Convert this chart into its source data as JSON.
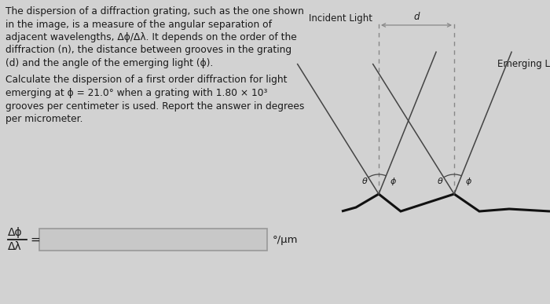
{
  "bg_color": "#d2d2d2",
  "text_color": "#1a1a1a",
  "paragraph1": "The dispersion of a diffraction grating, such as the one shown\nin the image, is a measure of the angular separation of\nadjacent wavelengths, Δϕ/Δλ. It depends on the order of the\ndiffraction (n), the distance between grooves in the grating\n(d) and the angle of the emerging light (ϕ).",
  "paragraph2": "Calculate the dispersion of a first order diffraction for light\nemerging at ϕ = 21.0° when a grating with 1.80 × 10³\ngrooves per centimeter is used. Report the answer in degrees\nper micrometer.",
  "label_incident": "Incident Light",
  "label_emerging": "Emerging Light",
  "label_d": "d",
  "label_theta": "θ",
  "label_phi": "ϕ",
  "answer_label_num": "Δϕ",
  "answer_label_den": "Δλ",
  "answer_unit": "°/μm",
  "line_color": "#444444",
  "dashed_color": "#888888",
  "sawtooth_color": "#111111",
  "box_edge_color": "#999999",
  "box_face_color": "#c8c8c8"
}
